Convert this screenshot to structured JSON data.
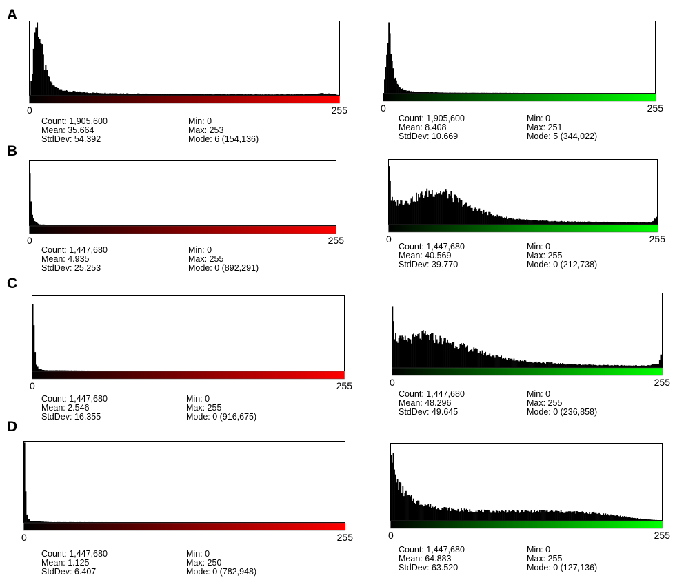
{
  "panels": [
    {
      "label": "A",
      "histograms": [
        {
          "color": "red",
          "axis_min": "0",
          "axis_max": "255",
          "count": "Count: 1,905,600",
          "mean": "Mean: 35.664",
          "stddev": "StdDev: 54.392",
          "min": "Min: 0",
          "max": "Max: 253",
          "mode": "Mode: 6 (154,136)"
        },
        {
          "color": "green",
          "axis_min": "0",
          "axis_max": "255",
          "count": "Count: 1,905,600",
          "mean": "Mean: 8.408",
          "stddev": "StdDev: 10.669",
          "min": "Min: 0",
          "max": "Max: 251",
          "mode": "Mode: 5 (344,022)"
        }
      ]
    },
    {
      "label": "B",
      "histograms": [
        {
          "color": "red",
          "axis_min": "0",
          "axis_max": "255",
          "count": "Count: 1,447,680",
          "mean": "Mean: 4.935",
          "stddev": "StdDev: 25.253",
          "min": "Min: 0",
          "max": "Max: 255",
          "mode": "Mode: 0 (892,291)"
        },
        {
          "color": "green",
          "axis_min": "0",
          "axis_max": "255",
          "count": "Count: 1,447,680",
          "mean": "Mean: 40.569",
          "stddev": "StdDev: 39.770",
          "min": "Min: 0",
          "max": "Max: 255",
          "mode": "Mode: 0 (212,738)"
        }
      ]
    },
    {
      "label": "C",
      "histograms": [
        {
          "color": "red",
          "axis_min": "0",
          "axis_max": "255",
          "count": "Count: 1,447,680",
          "mean": "Mean: 2.546",
          "stddev": "StdDev: 16.355",
          "min": "Min: 0",
          "max": "Max: 255",
          "mode": "Mode: 0 (916,675)"
        },
        {
          "color": "green",
          "axis_min": "0",
          "axis_max": "255",
          "count": "Count: 1,447,680",
          "mean": "Mean: 48.296",
          "stddev": "StdDev: 49.645",
          "min": "Min: 0",
          "max": "Max: 255",
          "mode": "Mode: 0 (236,858)"
        }
      ]
    },
    {
      "label": "D",
      "histograms": [
        {
          "color": "red",
          "axis_min": "0",
          "axis_max": "255",
          "count": "Count: 1,447,680",
          "mean": "Mean: 1.125",
          "stddev": "StdDev: 6.407",
          "min": "Min: 0",
          "max": "Max: 250",
          "mode": "Mode: 0 (782,948)"
        },
        {
          "color": "green",
          "axis_min": "0",
          "axis_max": "255",
          "count": "Count: 1,447,680",
          "mean": "Mean: 64.883",
          "stddev": "StdDev: 63.520",
          "min": "Min: 0",
          "max": "Max: 255",
          "mode": "Mode: 0 (127,136)"
        }
      ]
    }
  ],
  "chart_data": [
    {
      "type": "bar",
      "panel": "A",
      "channel": "red",
      "xlim": [
        0,
        255
      ],
      "shape_points": [
        [
          0,
          0.0
        ],
        [
          2,
          0.35
        ],
        [
          4,
          0.9
        ],
        [
          6,
          1.0
        ],
        [
          8,
          0.82
        ],
        [
          10,
          0.6
        ],
        [
          12,
          0.4
        ],
        [
          16,
          0.22
        ],
        [
          20,
          0.12
        ],
        [
          30,
          0.06
        ],
        [
          50,
          0.035
        ],
        [
          100,
          0.02
        ],
        [
          150,
          0.015
        ],
        [
          200,
          0.012
        ],
        [
          235,
          0.015
        ],
        [
          240,
          0.03
        ],
        [
          250,
          0.02
        ],
        [
          253,
          0.01
        ],
        [
          255,
          0.0
        ]
      ]
    },
    {
      "type": "bar",
      "panel": "A",
      "channel": "green",
      "xlim": [
        0,
        255
      ],
      "shape_points": [
        [
          0,
          0.0
        ],
        [
          1,
          0.18
        ],
        [
          3,
          0.55
        ],
        [
          5,
          1.0
        ],
        [
          7,
          0.55
        ],
        [
          10,
          0.25
        ],
        [
          14,
          0.1
        ],
        [
          20,
          0.04
        ],
        [
          30,
          0.02
        ],
        [
          60,
          0.008
        ],
        [
          150,
          0.004
        ],
        [
          251,
          0.002
        ],
        [
          255,
          0.0
        ]
      ]
    },
    {
      "type": "bar",
      "panel": "B",
      "channel": "red",
      "xlim": [
        0,
        255
      ],
      "shape_points": [
        [
          0,
          1.0
        ],
        [
          1,
          0.45
        ],
        [
          2,
          0.18
        ],
        [
          4,
          0.06
        ],
        [
          8,
          0.02
        ],
        [
          20,
          0.008
        ],
        [
          100,
          0.004
        ],
        [
          200,
          0.003
        ],
        [
          255,
          0.003
        ]
      ]
    },
    {
      "type": "bar",
      "panel": "B",
      "channel": "green",
      "xlim": [
        0,
        255
      ],
      "shape_points": [
        [
          0,
          1.0
        ],
        [
          2,
          0.4
        ],
        [
          5,
          0.33
        ],
        [
          10,
          0.35
        ],
        [
          20,
          0.38
        ],
        [
          30,
          0.45
        ],
        [
          38,
          0.5
        ],
        [
          46,
          0.52
        ],
        [
          55,
          0.48
        ],
        [
          65,
          0.38
        ],
        [
          80,
          0.25
        ],
        [
          100,
          0.14
        ],
        [
          120,
          0.08
        ],
        [
          140,
          0.055
        ],
        [
          160,
          0.045
        ],
        [
          180,
          0.04
        ],
        [
          200,
          0.035
        ],
        [
          230,
          0.03
        ],
        [
          250,
          0.03
        ],
        [
          253,
          0.08
        ],
        [
          255,
          0.1
        ]
      ]
    },
    {
      "type": "bar",
      "panel": "C",
      "channel": "red",
      "xlim": [
        0,
        255
      ],
      "shape_points": [
        [
          0,
          1.0
        ],
        [
          1,
          0.55
        ],
        [
          2,
          0.25
        ],
        [
          3,
          0.1
        ],
        [
          5,
          0.03
        ],
        [
          10,
          0.01
        ],
        [
          50,
          0.004
        ],
        [
          150,
          0.003
        ],
        [
          255,
          0.003
        ]
      ]
    },
    {
      "type": "bar",
      "panel": "C",
      "channel": "green",
      "xlim": [
        0,
        255
      ],
      "shape_points": [
        [
          0,
          1.0
        ],
        [
          2,
          0.45
        ],
        [
          5,
          0.38
        ],
        [
          10,
          0.37
        ],
        [
          20,
          0.4
        ],
        [
          30,
          0.44
        ],
        [
          40,
          0.4
        ],
        [
          55,
          0.34
        ],
        [
          70,
          0.27
        ],
        [
          90,
          0.18
        ],
        [
          110,
          0.12
        ],
        [
          130,
          0.08
        ],
        [
          150,
          0.06
        ],
        [
          170,
          0.045
        ],
        [
          190,
          0.035
        ],
        [
          210,
          0.03
        ],
        [
          240,
          0.025
        ],
        [
          252,
          0.05
        ],
        [
          255,
          0.2
        ]
      ]
    },
    {
      "type": "bar",
      "panel": "D",
      "channel": "red",
      "xlim": [
        0,
        255
      ],
      "shape_points": [
        [
          0,
          1.0
        ],
        [
          1,
          0.35
        ],
        [
          2,
          0.12
        ],
        [
          3,
          0.05
        ],
        [
          5,
          0.02
        ],
        [
          20,
          0.005
        ],
        [
          120,
          0.003
        ],
        [
          250,
          0.002
        ],
        [
          255,
          0.0
        ]
      ]
    },
    {
      "type": "bar",
      "panel": "D",
      "channel": "green",
      "xlim": [
        0,
        255
      ],
      "shape_points": [
        [
          0,
          1.0
        ],
        [
          4,
          0.55
        ],
        [
          8,
          0.45
        ],
        [
          15,
          0.32
        ],
        [
          25,
          0.24
        ],
        [
          40,
          0.18
        ],
        [
          60,
          0.14
        ],
        [
          90,
          0.12
        ],
        [
          120,
          0.12
        ],
        [
          150,
          0.12
        ],
        [
          170,
          0.11
        ],
        [
          190,
          0.1
        ],
        [
          210,
          0.07
        ],
        [
          230,
          0.03
        ],
        [
          245,
          0.01
        ],
        [
          255,
          0.0
        ]
      ]
    }
  ]
}
